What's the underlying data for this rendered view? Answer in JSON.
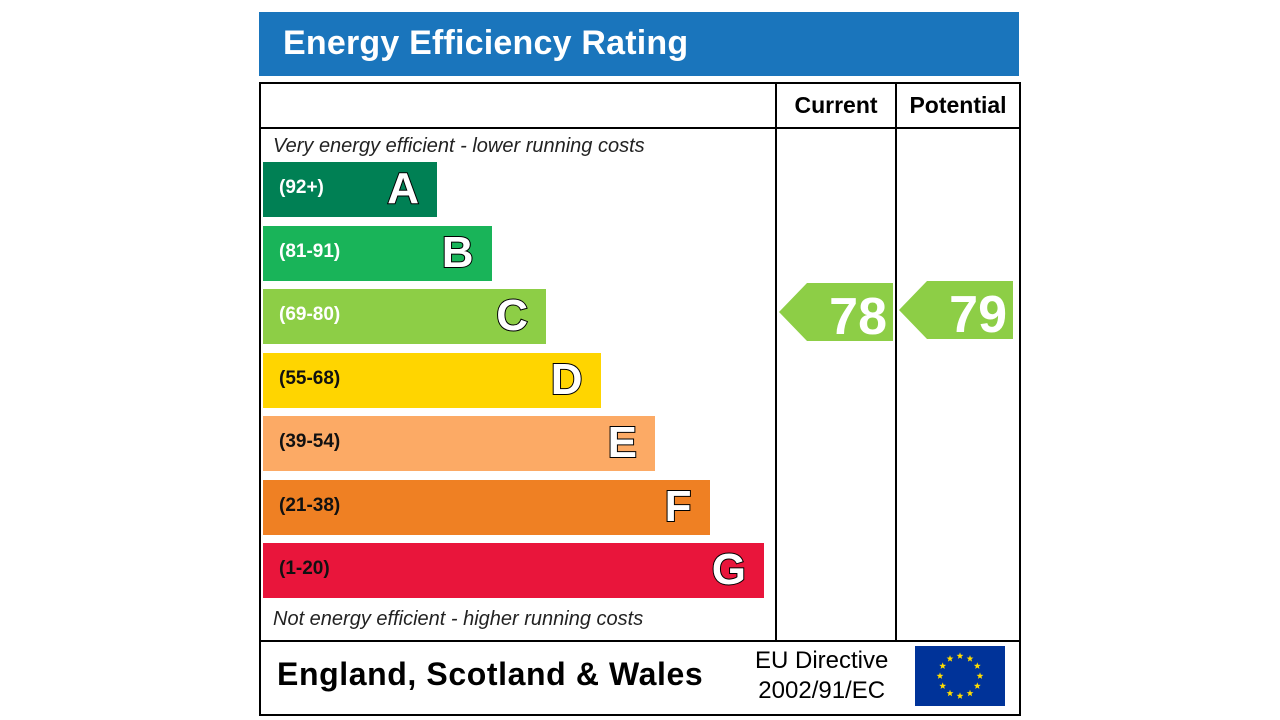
{
  "header": {
    "title": "Energy Efficiency Rating"
  },
  "columns": {
    "current": "Current",
    "potential": "Potential"
  },
  "notes": {
    "top": "Very energy efficient - lower running costs",
    "bottom": "Not energy efficient - higher running costs"
  },
  "footer": {
    "region": "England, Scotland & Wales",
    "directive_line1": "EU Directive",
    "directive_line2": "2002/91/EC"
  },
  "colors": {
    "title_bar": "#1a75bc",
    "A": "#008054",
    "B": "#19b459",
    "C": "#8dce46",
    "D": "#ffd500",
    "E": "#fcaa65",
    "F": "#ef8023",
    "G": "#e9153b",
    "arrow": "#8dce46",
    "eu_flag": "#003399",
    "eu_star": "#ffdd00"
  },
  "chart_data": {
    "type": "bar",
    "title": "Energy Efficiency Rating",
    "bands": [
      {
        "letter": "A",
        "range": "(92+)",
        "min": 92,
        "max": 100
      },
      {
        "letter": "B",
        "range": "(81-91)",
        "min": 81,
        "max": 91
      },
      {
        "letter": "C",
        "range": "(69-80)",
        "min": 69,
        "max": 80
      },
      {
        "letter": "D",
        "range": "(55-68)",
        "min": 55,
        "max": 68
      },
      {
        "letter": "E",
        "range": "(39-54)",
        "min": 39,
        "max": 54
      },
      {
        "letter": "F",
        "range": "(21-38)",
        "min": 21,
        "max": 38
      },
      {
        "letter": "G",
        "range": "(1-20)",
        "min": 1,
        "max": 20
      }
    ],
    "current": {
      "value": 78,
      "band": "C"
    },
    "potential": {
      "value": 79,
      "band": "C"
    }
  }
}
